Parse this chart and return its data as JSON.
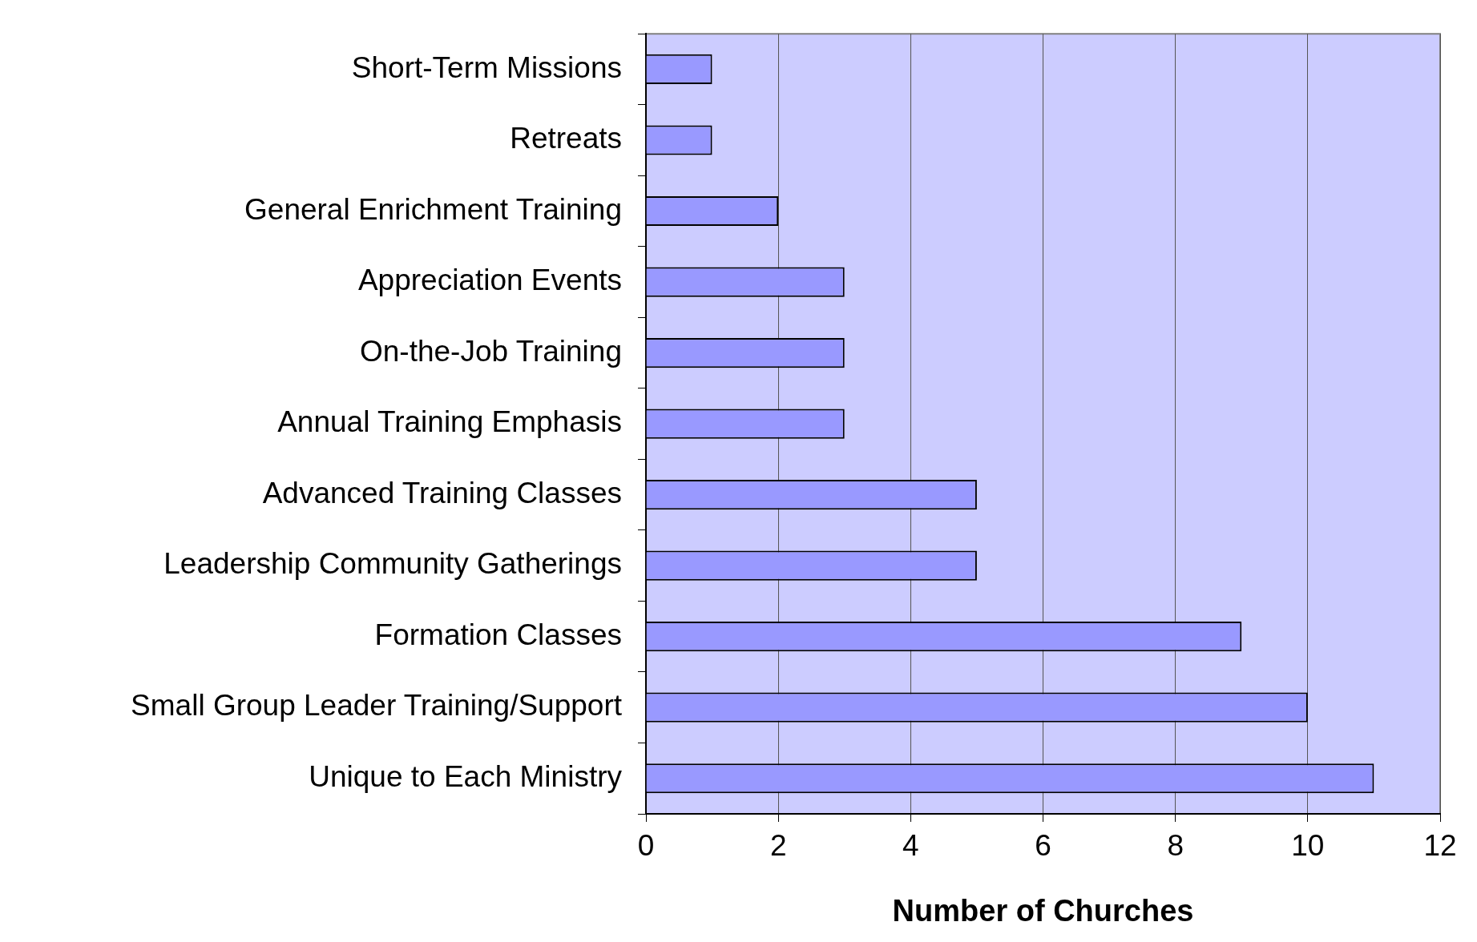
{
  "chart_data": {
    "type": "bar",
    "orientation": "horizontal",
    "xlabel": "Number of Churches",
    "categories": [
      "Short-Term Missions",
      "Retreats",
      "General Enrichment Training",
      "Appreciation Events",
      "On-the-Job Training",
      "Annual Training Emphasis",
      "Advanced Training Classes",
      "Leadership Community Gatherings",
      "Formation Classes",
      "Small Group Leader Training/Support",
      "Unique to Each Ministry"
    ],
    "values": [
      1,
      1,
      2,
      3,
      3,
      3,
      5,
      5,
      9,
      10,
      11
    ],
    "color": "#9999ff",
    "xlim": [
      0,
      12
    ],
    "xticks": [
      0,
      2,
      4,
      6,
      8,
      10,
      12
    ],
    "grid": "x",
    "legend": false
  }
}
